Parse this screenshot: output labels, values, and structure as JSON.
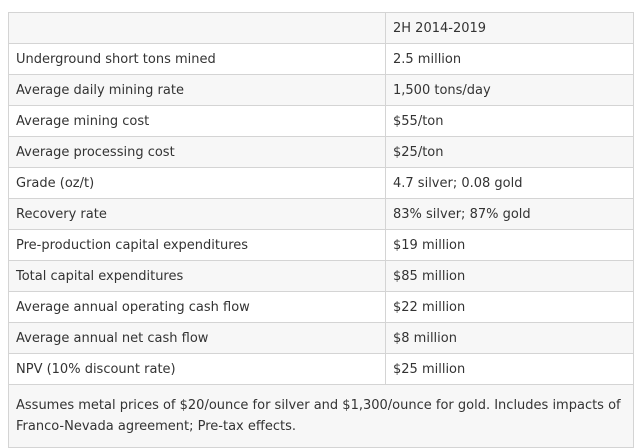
{
  "table": {
    "header": {
      "label": "",
      "period": "2H 2014-2019"
    },
    "rows": [
      {
        "label": "Underground short tons mined",
        "value": "2.5 million"
      },
      {
        "label": "Average daily mining rate",
        "value": "1,500 tons/day"
      },
      {
        "label": "Average mining cost",
        "value": "$55/ton"
      },
      {
        "label": "Average processing cost",
        "value": "$25/ton"
      },
      {
        "label": "Grade (oz/t)",
        "value": "4.7 silver; 0.08 gold"
      },
      {
        "label": "Recovery rate",
        "value": "83% silver; 87% gold"
      },
      {
        "label": "Pre-production capital expenditures",
        "value": "$19 million"
      },
      {
        "label": "Total capital expenditures",
        "value": "$85 million"
      },
      {
        "label": "Average annual operating cash flow",
        "value": "$22 million"
      },
      {
        "label": "Average annual net cash flow",
        "value": "$8 million"
      },
      {
        "label": "NPV (10% discount rate)",
        "value": "$25 million"
      }
    ],
    "footnote": "Assumes metal prices of $20/ounce for silver and $1,300/ounce for gold. Includes impacts of Franco-Nevada agreement; Pre-tax effects."
  }
}
